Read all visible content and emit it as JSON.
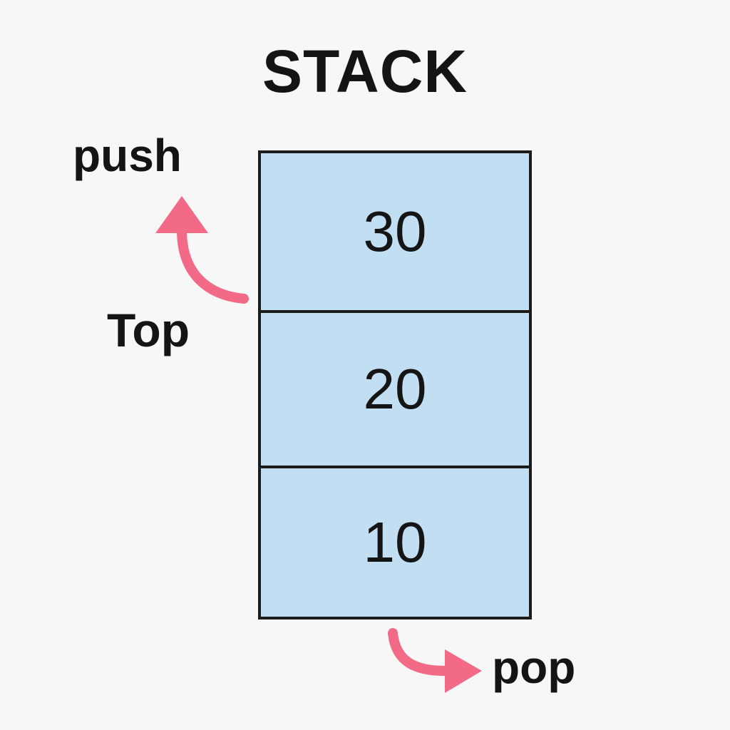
{
  "title": "STACK",
  "labels": {
    "push": "push",
    "top": "Top",
    "pop": "pop"
  },
  "stack": {
    "items": [
      {
        "value": "30"
      },
      {
        "value": "20"
      },
      {
        "value": "10"
      }
    ]
  },
  "colors": {
    "background": "#f7f7f7",
    "stack_fill": "#c1def2",
    "stack_border": "#1b1b1b",
    "arrow": "#f36a87",
    "text": "#141414"
  },
  "icons": {
    "push_arrow": "curved-up-arrow-icon",
    "pop_arrow": "curved-right-arrow-icon"
  }
}
